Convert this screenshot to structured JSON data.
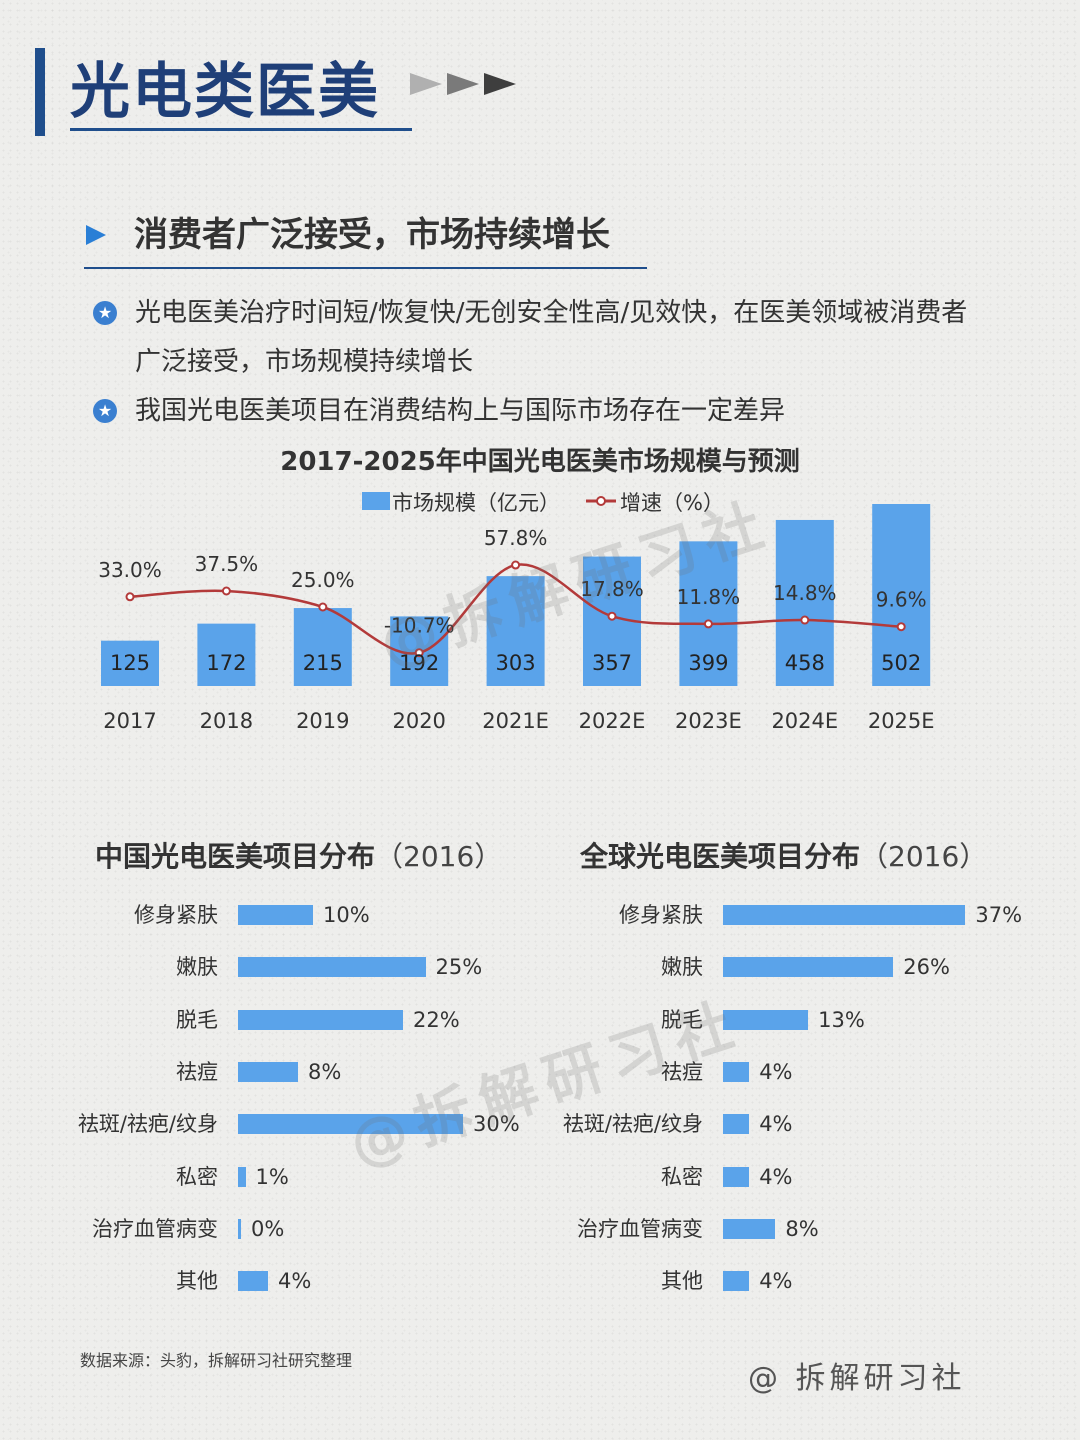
{
  "header": {
    "title": "光电类医美"
  },
  "subheading": {
    "title": "消费者广泛接受，市场持续增长"
  },
  "bullets": [
    {
      "line1": "光电医美治疗时间短/恢复快/无创安全性高/见效快，在医美领域被消费者",
      "line2": "广泛接受，市场规模持续增长"
    },
    {
      "line1": "我国光电医美项目在消费结构上与国际市场存在一定差异"
    }
  ],
  "watermark": {
    "text": "@拆解研习社"
  },
  "chart_data": [
    {
      "type": "bar",
      "title": "2017-2025年中国光电医美市场规模与预测",
      "categories": [
        "2017",
        "2018",
        "2019",
        "2020",
        "2021E",
        "2022E",
        "2023E",
        "2024E",
        "2025E"
      ],
      "series": [
        {
          "name": "市场规模（亿元）",
          "type": "bar",
          "values": [
            125,
            172,
            215,
            192,
            303,
            357,
            399,
            458,
            502
          ]
        },
        {
          "name": "增速（%）",
          "type": "line",
          "values": [
            33.0,
            37.5,
            25.0,
            -10.7,
            57.8,
            17.8,
            11.8,
            14.8,
            9.6
          ],
          "labels": [
            "33.0%",
            "37.5%",
            "25.0%",
            "-10.7%",
            "57.8%",
            "17.8%",
            "11.8%",
            "14.8%",
            "9.6%"
          ]
        }
      ],
      "ylim": [
        0,
        520
      ],
      "colors": {
        "bar": "#5aa3ea",
        "line": "#b33a3a"
      }
    },
    {
      "type": "bar",
      "orientation": "horizontal",
      "title": "中国光电医美项目分布",
      "year": "（2016）",
      "categories": [
        "修身紧肤",
        "嫩肤",
        "脱毛",
        "祛痘",
        "祛斑/祛疤/纹身",
        "私密",
        "治疗血管病变",
        "其他"
      ],
      "values": [
        10,
        25,
        22,
        8,
        30,
        1,
        0,
        4
      ],
      "labels": [
        "10%",
        "25%",
        "22%",
        "8%",
        "30%",
        "1%",
        "0%",
        "4%"
      ]
    },
    {
      "type": "bar",
      "orientation": "horizontal",
      "title": "全球光电医美项目分布",
      "year": "（2016）",
      "categories": [
        "修身紧肤",
        "嫩肤",
        "脱毛",
        "祛痘",
        "祛斑/祛疤/纹身",
        "私密",
        "治疗血管病变",
        "其他"
      ],
      "values": [
        37,
        26,
        13,
        4,
        4,
        4,
        8,
        4
      ],
      "labels": [
        "37%",
        "26%",
        "13%",
        "4%",
        "4%",
        "4%",
        "8%",
        "4%"
      ]
    }
  ],
  "footer": {
    "source": "数据来源：头豹，拆解研习社研究整理",
    "signature": "@ 拆解研习社"
  }
}
